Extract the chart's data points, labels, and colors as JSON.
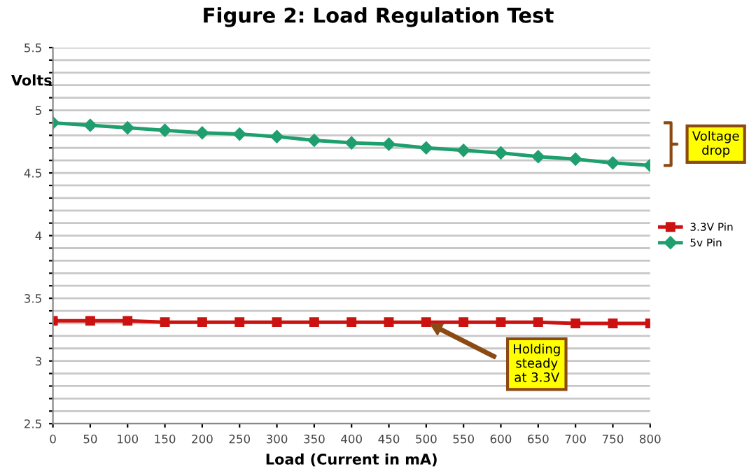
{
  "chart_data": {
    "type": "line",
    "title": "Figure 2: Load Regulation Test",
    "xlabel": "Load (Current in mA)",
    "ylabel": "Volts",
    "x": [
      0,
      50,
      100,
      150,
      200,
      250,
      300,
      350,
      400,
      450,
      500,
      550,
      600,
      650,
      700,
      750,
      800
    ],
    "series": [
      {
        "name": "3.3V Pin",
        "color": "#cc1111",
        "marker": "square",
        "values": [
          3.32,
          3.32,
          3.32,
          3.31,
          3.31,
          3.31,
          3.31,
          3.31,
          3.31,
          3.31,
          3.31,
          3.31,
          3.31,
          3.31,
          3.3,
          3.3,
          3.3
        ]
      },
      {
        "name": "5v Pin",
        "color": "#1f9e6e",
        "marker": "diamond",
        "values": [
          4.9,
          4.88,
          4.86,
          4.84,
          4.82,
          4.81,
          4.79,
          4.76,
          4.74,
          4.73,
          4.7,
          4.68,
          4.66,
          4.63,
          4.61,
          4.58,
          4.56
        ]
      }
    ],
    "xlim": [
      0,
      800
    ],
    "xticks": [
      0,
      50,
      100,
      150,
      200,
      250,
      300,
      350,
      400,
      450,
      500,
      550,
      600,
      650,
      700,
      750,
      800
    ],
    "ylim": [
      2.5,
      5.5
    ],
    "yticks": [
      2.5,
      {
        "value": 2.6,
        "label": null
      },
      {
        "value": 2.7,
        "label": null
      },
      {
        "value": 2.8,
        "label": null
      },
      {
        "value": 2.9,
        "label": null
      },
      3,
      {
        "value": 3.1,
        "label": null
      },
      {
        "value": 3.2,
        "label": null
      },
      {
        "value": 3.3,
        "label": null
      },
      {
        "value": 3.4,
        "label": null
      },
      3.5,
      {
        "value": 3.6,
        "label": null
      },
      {
        "value": 3.7,
        "label": null
      },
      {
        "value": 3.8,
        "label": null
      },
      {
        "value": 3.9,
        "label": null
      },
      4,
      {
        "value": 4.1,
        "label": null
      },
      {
        "value": 4.2,
        "label": null
      },
      {
        "value": 4.3,
        "label": null
      },
      {
        "value": 4.4,
        "label": null
      },
      4.5,
      {
        "value": 4.6,
        "label": null
      },
      {
        "value": 4.7,
        "label": null
      },
      {
        "value": 4.8,
        "label": null
      },
      {
        "value": 4.9,
        "label": null
      },
      5,
      {
        "value": 5.1,
        "label": null
      },
      {
        "value": 5.2,
        "label": null
      },
      {
        "value": 5.3,
        "label": null
      },
      {
        "value": 5.4,
        "label": null
      },
      5.5
    ],
    "grid": "y",
    "legend": "right",
    "line_style": "solid",
    "annotations": [
      "Voltage drop",
      "Holding steady at 3.3V"
    ]
  }
}
